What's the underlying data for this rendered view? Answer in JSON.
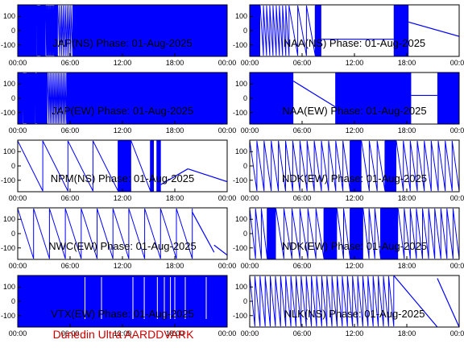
{
  "figure": {
    "footer": "Dunedin Ultra AARDDVARK",
    "footer_color": "#cc0000",
    "trace_color": "#0000ff",
    "background": "#ffffff"
  },
  "chart_data": [
    {
      "id": "jap-ns",
      "type": "line",
      "title": "JAP(NS) Phase: 01-Aug-2025",
      "x_ticks": [
        "00:00",
        "06:00",
        "12:00",
        "18:00",
        "00:00"
      ],
      "y_ticks": [
        "100",
        "0",
        "-100"
      ],
      "xlim_hours": [
        0,
        24
      ],
      "ylim": [
        -180,
        180
      ],
      "pattern": {
        "kind": "dense",
        "blocks": [
          [
            0,
            2.2
          ],
          [
            2.6,
            3.2
          ],
          [
            4.2,
            4.6
          ],
          [
            6.3,
            24
          ]
        ],
        "wrap": [
          [
            2.2,
            2.6,
            8
          ],
          [
            3.2,
            4.2,
            10
          ],
          [
            4.6,
            6.3,
            8
          ]
        ]
      }
    },
    {
      "id": "naa-ns",
      "type": "line",
      "title": "NAA(NS) Phase: 01-Aug-2025",
      "x_ticks": [
        "00:00",
        "06:00",
        "12:00",
        "18:00",
        "00:00"
      ],
      "y_ticks": [
        "100",
        "0",
        "-100"
      ],
      "xlim_hours": [
        0,
        24
      ],
      "ylim": [
        -180,
        180
      ],
      "pattern": {
        "kind": "mixed",
        "blocks": [
          [
            0,
            1.2
          ],
          [
            7.5,
            8.2
          ],
          [
            16.5,
            18.2
          ]
        ],
        "wrap": [
          [
            1.2,
            4.5,
            9
          ],
          [
            4.5,
            7.5,
            3
          ]
        ],
        "line": [
          [
            8.2,
            16.5,
            -60,
            -60
          ],
          [
            18.2,
            24,
            60,
            -40
          ]
        ]
      }
    },
    {
      "id": "jap-ew",
      "type": "line",
      "title": "JAP(EW) Phase: 01-Aug-2025",
      "x_ticks": [
        "00:00",
        "06:00",
        "12:00",
        "18:00",
        "00:00"
      ],
      "y_ticks": [
        "100",
        "0",
        "-100"
      ],
      "xlim_hours": [
        0,
        24
      ],
      "ylim": [
        -180,
        180
      ],
      "pattern": {
        "kind": "dense",
        "blocks": [
          [
            0,
            0.6
          ],
          [
            1.0,
            2.0
          ],
          [
            2.2,
            3.4
          ],
          [
            5.6,
            24
          ]
        ],
        "wrap": [
          [
            0.6,
            1.0,
            6
          ],
          [
            2.0,
            2.2,
            4
          ],
          [
            3.4,
            5.6,
            12
          ]
        ]
      }
    },
    {
      "id": "naa-ew",
      "type": "line",
      "title": "NAA(EW) Phase: 01-Aug-2025",
      "x_ticks": [
        "00:00",
        "06:00",
        "12:00",
        "18:00",
        "00:00"
      ],
      "y_ticks": [
        "100",
        "0",
        "-100"
      ],
      "xlim_hours": [
        0,
        24
      ],
      "ylim": [
        -180,
        180
      ],
      "pattern": {
        "kind": "mixed",
        "blocks": [
          [
            0,
            5.0
          ],
          [
            9.8,
            18.5
          ],
          [
            21.5,
            24
          ]
        ],
        "wrap": [],
        "line": [
          [
            5.0,
            9.8,
            120,
            -60
          ],
          [
            18.5,
            21.5,
            20,
            20
          ]
        ]
      }
    },
    {
      "id": "npm-ns",
      "type": "line",
      "title": "NPM(NS) Phase: 01-Aug-2025",
      "x_ticks": [
        "00:00",
        "06:00",
        "12:00",
        "18:00",
        "00:00"
      ],
      "y_ticks": [
        "100",
        "0",
        "-100"
      ],
      "xlim_hours": [
        0,
        24
      ],
      "ylim": [
        -180,
        180
      ],
      "pattern": {
        "kind": "mixed",
        "blocks": [
          [
            11.5,
            13.0
          ],
          [
            15.2,
            15.6
          ],
          [
            15.9,
            16.4
          ]
        ],
        "wrap": [
          [
            0,
            11.5,
            4
          ],
          [
            13.0,
            15.2,
            1
          ]
        ],
        "line": [
          [
            16.4,
            19.5,
            -130,
            -20
          ],
          [
            19.5,
            24,
            -20,
            -110
          ]
        ]
      }
    },
    {
      "id": "ndk-ew-1",
      "type": "line",
      "title": "NDK(EW) Phase: 01-Aug-2025",
      "x_ticks": [
        "00:00",
        "06:00",
        "12:00",
        "18:00",
        "00:00"
      ],
      "y_ticks": [
        "100",
        "0",
        "-100"
      ],
      "xlim_hours": [
        0,
        24
      ],
      "ylim": [
        -180,
        180
      ],
      "pattern": {
        "kind": "mixed",
        "blocks": [
          [
            11.5,
            12.8
          ],
          [
            15.5,
            16.8
          ]
        ],
        "wrap": [
          [
            0,
            11.5,
            14
          ],
          [
            12.8,
            15.5,
            3
          ],
          [
            16.8,
            24,
            9
          ]
        ]
      }
    },
    {
      "id": "nwc-ew",
      "type": "line",
      "title": "NWC(EW) Phase: 01-Aug-2025",
      "x_ticks": [
        "00:00",
        "06:00",
        "12:00",
        "18:00",
        "00:00"
      ],
      "y_ticks": [
        "100",
        "0",
        "-100"
      ],
      "xlim_hours": [
        0,
        24
      ],
      "ylim": [
        -180,
        180
      ],
      "pattern": {
        "kind": "sparse",
        "blocks": [],
        "wrap": [
          [
            0,
            20,
            11
          ]
        ],
        "line": [
          [
            20,
            22.5,
            150,
            -130
          ],
          [
            22.5,
            24,
            -80,
            -150
          ]
        ]
      }
    },
    {
      "id": "ndk-ew-2",
      "type": "line",
      "title": "NDK(EW) Phase: 01-Aug-2025",
      "x_ticks": [
        "00:00",
        "06:00",
        "12:00",
        "18:00",
        "00:00"
      ],
      "y_ticks": [
        "100",
        "0",
        "-100"
      ],
      "xlim_hours": [
        0,
        24
      ],
      "ylim": [
        -180,
        180
      ],
      "pattern": {
        "kind": "mixed",
        "blocks": [
          [
            2.0,
            3.0
          ],
          [
            8.5,
            10.0
          ],
          [
            11.5,
            13.0
          ],
          [
            15.0,
            17.0
          ]
        ],
        "wrap": [
          [
            0,
            2.0,
            3
          ],
          [
            3.0,
            8.5,
            6
          ],
          [
            10.0,
            11.5,
            2
          ],
          [
            13.0,
            15.0,
            3
          ],
          [
            17.0,
            24,
            10
          ]
        ]
      }
    },
    {
      "id": "vtx-ew",
      "type": "line",
      "title": "VTX(EW) Phase: 01-Aug-2025",
      "x_ticks": [
        "00:00",
        "06:00",
        "12:00",
        "18:00",
        "00:00"
      ],
      "y_ticks": [
        "100",
        "0",
        "-100"
      ],
      "xlim_hours": [
        0,
        24
      ],
      "ylim": [
        -180,
        180
      ],
      "pattern": {
        "kind": "dense",
        "blocks": [
          [
            0,
            24
          ]
        ],
        "wrap": [],
        "gaps": [
          7.7,
          9.6,
          13.2,
          14.5,
          16.0,
          16.8,
          17.5,
          18.0,
          19.2,
          21.6
        ]
      }
    },
    {
      "id": "nlk-ns",
      "type": "line",
      "title": "NLK(NS) Phase: 01-Aug-2025",
      "x_ticks": [
        "00:00",
        "06:00",
        "12:00",
        "18:00",
        "00:00"
      ],
      "y_ticks": [
        "100",
        "0",
        "-100"
      ],
      "xlim_hours": [
        0,
        24
      ],
      "ylim": [
        -180,
        180
      ],
      "pattern": {
        "kind": "sparse",
        "blocks": [],
        "wrap": [
          [
            0,
            16.5,
            28
          ]
        ],
        "line": [
          [
            16.5,
            21.5,
            180,
            -180
          ],
          [
            21.5,
            24,
            160,
            -180
          ]
        ]
      }
    }
  ]
}
